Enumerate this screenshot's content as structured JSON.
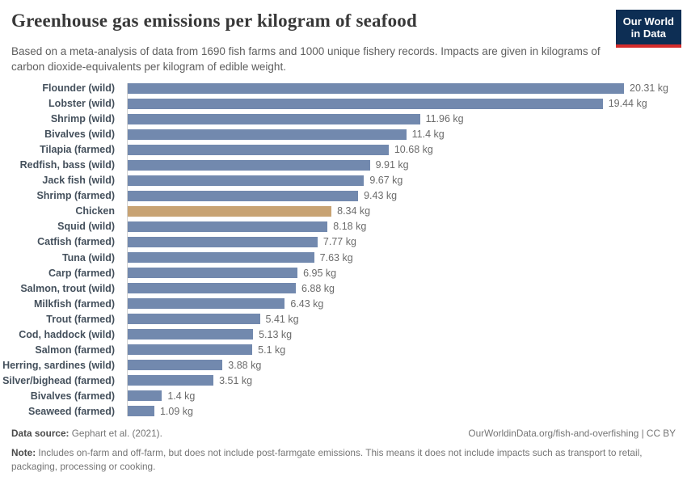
{
  "header": {
    "title": "Greenhouse gas emissions per kilogram of seafood",
    "subtitle": "Based on a meta-analysis of data from 1690 fish farms and 1000 unique fishery records. Impacts are given in kilograms of carbon dioxide-equivalents per kilogram of edible weight.",
    "logo": {
      "line1": "Our World",
      "line2": "in Data"
    }
  },
  "chart_data": {
    "type": "bar",
    "orientation": "horizontal",
    "title": "Greenhouse gas emissions per kilogram of seafood",
    "xlabel": "",
    "ylabel": "",
    "xlim": [
      0,
      20.31
    ],
    "grid": false,
    "legend": "none",
    "categories": [
      "Flounder (wild)",
      "Lobster (wild)",
      "Shrimp (wild)",
      "Bivalves (wild)",
      "Tilapia (farmed)",
      "Redfish, bass (wild)",
      "Jack fish (wild)",
      "Shrimp (farmed)",
      "Chicken",
      "Squid (wild)",
      "Catfish (farmed)",
      "Tuna (wild)",
      "Carp (farmed)",
      "Salmon, trout (wild)",
      "Milkfish (farmed)",
      "Trout (farmed)",
      "Cod, haddock (wild)",
      "Salmon (farmed)",
      "Herring, sardines (wild)",
      "Silver/bighead (farmed)",
      "Bivalves (farmed)",
      "Seaweed (farmed)"
    ],
    "values": [
      20.31,
      19.44,
      11.96,
      11.4,
      10.68,
      9.91,
      9.67,
      9.43,
      8.34,
      8.18,
      7.77,
      7.63,
      6.95,
      6.88,
      6.43,
      5.41,
      5.13,
      5.1,
      3.88,
      3.51,
      1.4,
      1.09
    ],
    "value_labels": [
      "20.31 kg",
      "19.44 kg",
      "11.96 kg",
      "11.4 kg",
      "10.68 kg",
      "9.91 kg",
      "9.67 kg",
      "9.43 kg",
      "8.34 kg",
      "8.18 kg",
      "7.77 kg",
      "7.63 kg",
      "6.95 kg",
      "6.88 kg",
      "6.43 kg",
      "5.41 kg",
      "5.13 kg",
      "5.1 kg",
      "3.88 kg",
      "3.51 kg",
      "1.4 kg",
      "1.09 kg"
    ],
    "highlight_category": "Chicken",
    "colors": {
      "bar": "#7289ae",
      "highlight": "#c8a373"
    }
  },
  "footer": {
    "source_label": "Data source:",
    "source_text": " Gephart et al. (2021).",
    "link_text": "OurWorldinData.org/fish-and-overfishing | CC BY",
    "note_label": "Note:",
    "note_text": " Includes on-farm and off-farm, but does not include post-farmgate emissions. This means it does not include impacts such as transport to retail, packaging, processing or cooking."
  }
}
